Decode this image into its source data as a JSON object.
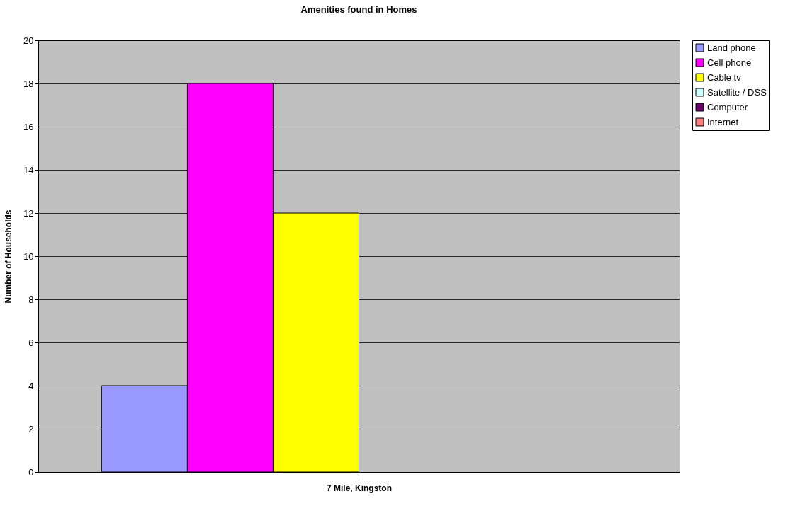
{
  "chart_data": {
    "type": "bar",
    "title": "Amenities found in Homes",
    "xlabel": "7 Mile, Kingston",
    "ylabel": "Number of Households",
    "categories": [
      null
    ],
    "series": [
      {
        "name": "Land phone",
        "color": "#9999ff",
        "values": [
          4
        ]
      },
      {
        "name": "Cell phone",
        "color": "#ff00ff",
        "values": [
          18
        ]
      },
      {
        "name": "Cable tv",
        "color": "#ffff00",
        "values": [
          12
        ]
      },
      {
        "name": "Satellite / DSS",
        "color": "#ccffff",
        "values": [
          0
        ]
      },
      {
        "name": "Computer",
        "color": "#660066",
        "values": [
          0
        ]
      },
      {
        "name": "Internet",
        "color": "#ff8080",
        "values": [
          0
        ]
      }
    ],
    "ylim": [
      0,
      20
    ],
    "yticks": [
      0,
      2,
      4,
      6,
      8,
      10,
      12,
      14,
      16,
      18,
      20
    ],
    "grid": "y",
    "legend": "right",
    "tick_labels": "y"
  }
}
